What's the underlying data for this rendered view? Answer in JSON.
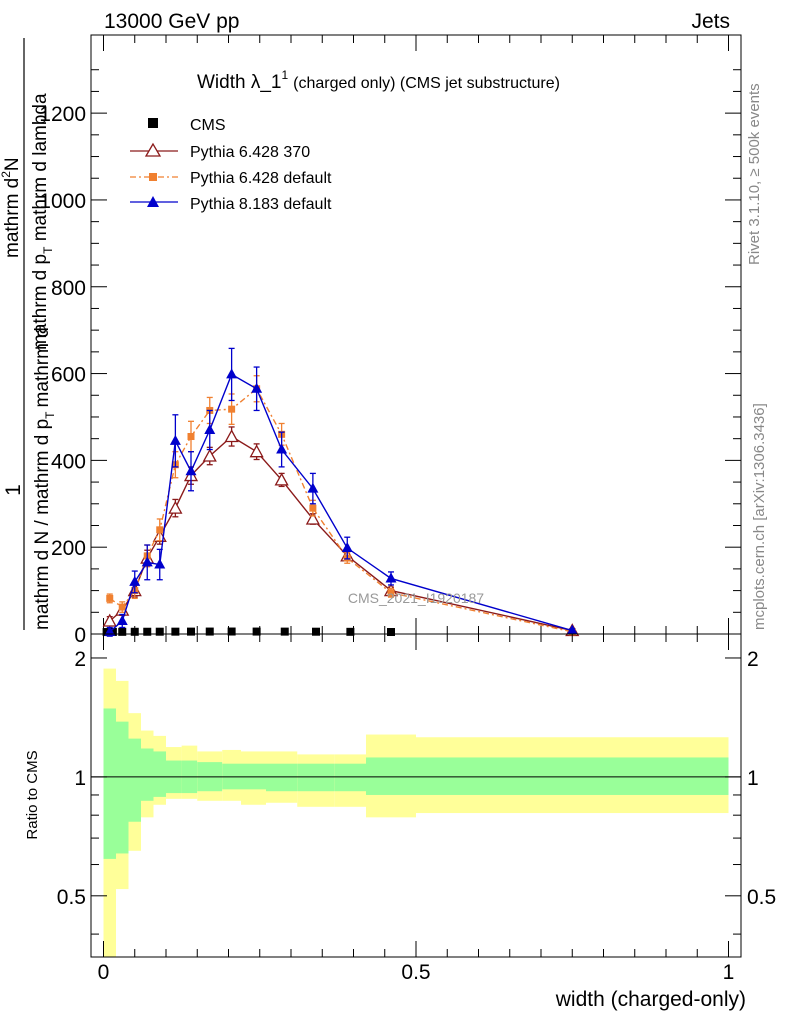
{
  "header": {
    "left": "13000 GeV pp",
    "right": "Jets",
    "side_rivet": "Rivet 3.1.10, ≥ 500k events",
    "side_mcplots": "mcplots.cern.ch [arXiv:1306.3436]",
    "watermark": "CMS_2021_I1920187"
  },
  "chart_data": [
    {
      "type": "line",
      "panel": "main",
      "title": "Width λ_1",
      "title_sup": "1",
      "subtitle": "(charged only) (CMS jet substructure)",
      "ylabel_num": "1",
      "ylabel_den_line1": "mathrm d N / mathrm d p",
      "ylabel_den_sub1": "T",
      "ylabel_den_line2": "mathrm d",
      "ylabel_frac_top": "mathrm d",
      "ylabel_frac_top_sup": "2",
      "ylabel_frac_top_rest": "N",
      "ylabel_frac_bot": "mathrm d p",
      "ylabel_frac_bot_sub": "T",
      "ylabel_frac_bot_rest": " mathrm d lambda",
      "xlim": [
        -0.02,
        1.02
      ],
      "ylim": [
        0,
        1380
      ],
      "yticks": [
        0,
        200,
        400,
        600,
        800,
        1000,
        1200
      ],
      "ytick_labels": [
        "0",
        "200",
        "400",
        "600",
        "800",
        "1000",
        "1200"
      ],
      "legend_position": "top-left",
      "series": [
        {
          "name": "CMS",
          "color": "#000000",
          "marker": "square",
          "x": [
            0.005,
            0.015,
            0.03,
            0.05,
            0.07,
            0.09,
            0.115,
            0.14,
            0.17,
            0.205,
            0.245,
            0.29,
            0.34,
            0.395,
            0.46
          ],
          "y": [
            4.5,
            4.8,
            5.0,
            5.1,
            5.2,
            5.3,
            5.4,
            5.5,
            5.6,
            5.7,
            5.6,
            5.5,
            5.3,
            5.0,
            4.6
          ]
        },
        {
          "name": "Pythia 6.428 370",
          "color": "#8b1a1a",
          "marker": "triangle-open",
          "x": [
            0.01,
            0.03,
            0.05,
            0.07,
            0.09,
            0.115,
            0.14,
            0.17,
            0.205,
            0.245,
            0.285,
            0.335,
            0.39,
            0.46,
            0.75
          ],
          "y": [
            30,
            55,
            100,
            175,
            225,
            290,
            365,
            410,
            455,
            420,
            355,
            265,
            180,
            100,
            8
          ],
          "err": [
            10,
            12,
            15,
            18,
            18,
            20,
            20,
            20,
            22,
            18,
            15,
            12,
            10,
            8,
            3
          ]
        },
        {
          "name": "Pythia 6.428 default",
          "color": "#f08030",
          "marker": "square",
          "x": [
            0.01,
            0.03,
            0.05,
            0.07,
            0.09,
            0.115,
            0.14,
            0.17,
            0.205,
            0.245,
            0.285,
            0.335,
            0.39,
            0.46,
            0.75
          ],
          "y": [
            82,
            62,
            100,
            180,
            240,
            390,
            455,
            515,
            518,
            565,
            460,
            290,
            175,
            95,
            5
          ],
          "err": [
            10,
            12,
            18,
            25,
            25,
            30,
            35,
            30,
            35,
            30,
            25,
            18,
            12,
            10,
            3
          ]
        },
        {
          "name": "Pythia 8.183 default",
          "color": "#0000cc",
          "marker": "triangle",
          "x": [
            0.01,
            0.03,
            0.05,
            0.07,
            0.09,
            0.115,
            0.14,
            0.17,
            0.205,
            0.245,
            0.285,
            0.335,
            0.39,
            0.46,
            0.75
          ],
          "y": [
            5,
            30,
            120,
            165,
            160,
            445,
            375,
            470,
            598,
            565,
            425,
            335,
            198,
            128,
            8
          ],
          "err": [
            10,
            15,
            25,
            40,
            35,
            60,
            45,
            45,
            60,
            50,
            40,
            35,
            25,
            15,
            4
          ]
        }
      ]
    },
    {
      "type": "area",
      "panel": "ratio",
      "ylabel": "Ratio to CMS",
      "xlabel": "width (charged-only)",
      "xlim": [
        -0.02,
        1.02
      ],
      "ylim": [
        0.35,
        2.3
      ],
      "yticks": [
        0.5,
        1,
        2
      ],
      "ytick_labels": [
        "0.5",
        "1",
        "2"
      ],
      "xticks": [
        0,
        0.5,
        1
      ],
      "xtick_labels": [
        "0",
        "0.5",
        "1"
      ],
      "bins": [
        0,
        0.02,
        0.04,
        0.06,
        0.08,
        0.1,
        0.125,
        0.15,
        0.19,
        0.22,
        0.26,
        0.31,
        0.37,
        0.42,
        0.5,
        1.0
      ],
      "green_band": {
        "color": "#99ff99",
        "upper": [
          1.49,
          1.38,
          1.25,
          1.18,
          1.16,
          1.1,
          1.1,
          1.09,
          1.08,
          1.08,
          1.08,
          1.08,
          1.08,
          1.12,
          1.12
        ],
        "lower": [
          0.62,
          0.64,
          0.77,
          0.87,
          0.89,
          0.91,
          0.91,
          0.92,
          0.93,
          0.93,
          0.92,
          0.92,
          0.92,
          0.9,
          0.9
        ]
      },
      "yellow_band": {
        "color": "#ffff99",
        "upper": [
          1.88,
          1.75,
          1.45,
          1.31,
          1.27,
          1.19,
          1.2,
          1.16,
          1.17,
          1.16,
          1.16,
          1.14,
          1.14,
          1.28,
          1.26
        ]
      },
      "yellow_band_lower": [
        0.35,
        0.52,
        0.65,
        0.79,
        0.85,
        0.88,
        0.88,
        0.87,
        0.87,
        0.85,
        0.86,
        0.84,
        0.84,
        0.79,
        0.81
      ],
      "reference_line": 1
    }
  ]
}
